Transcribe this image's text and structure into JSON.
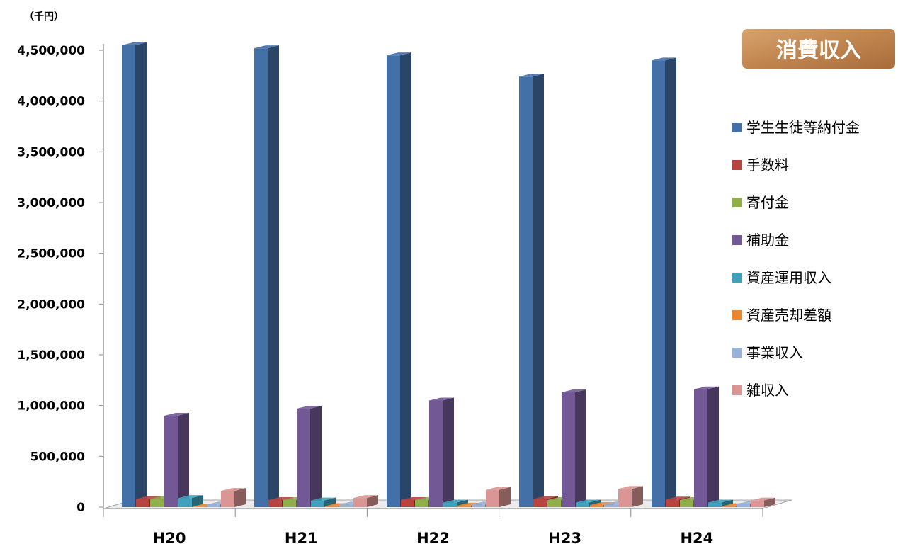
{
  "chart_data": {
    "type": "bar",
    "title": "消費収入",
    "unit_label": "（千円）",
    "categories": [
      "H20",
      "H21",
      "H22",
      "H23",
      "H24"
    ],
    "ylim": [
      0,
      4500000
    ],
    "yticks": [
      0,
      500000,
      1000000,
      1500000,
      2000000,
      2500000,
      3000000,
      3500000,
      4000000,
      4500000
    ],
    "ytick_labels": [
      "0",
      "500,000",
      "1,000,000",
      "1,500,000",
      "2,000,000",
      "2,500,000",
      "3,000,000",
      "3,500,000",
      "4,000,000",
      "4,500,000"
    ],
    "grid": false,
    "three_d": true,
    "legend_position": "right",
    "series": [
      {
        "name": "学生生徒等納付金",
        "color": "#4470A8",
        "values": [
          4550000,
          4520000,
          4450000,
          4240000,
          4400000
        ]
      },
      {
        "name": "手数料",
        "color": "#B8433F",
        "values": [
          80000,
          70000,
          70000,
          80000,
          75000
        ]
      },
      {
        "name": "寄付金",
        "color": "#90AF4A",
        "values": [
          80000,
          70000,
          70000,
          70000,
          70000
        ]
      },
      {
        "name": "補助金",
        "color": "#735896",
        "values": [
          900000,
          970000,
          1050000,
          1130000,
          1160000
        ]
      },
      {
        "name": "資産運用収入",
        "color": "#3FA1BC",
        "values": [
          90000,
          65000,
          45000,
          45000,
          45000
        ]
      },
      {
        "name": "資産売却差額",
        "color": "#E98733",
        "values": [
          5000,
          10000,
          15000,
          20000,
          10000
        ]
      },
      {
        "name": "事業収入",
        "color": "#98B1D8",
        "values": [
          25000,
          25000,
          25000,
          25000,
          30000
        ]
      },
      {
        "name": "雑収入",
        "color": "#D99694",
        "values": [
          160000,
          90000,
          170000,
          180000,
          65000
        ]
      }
    ]
  }
}
